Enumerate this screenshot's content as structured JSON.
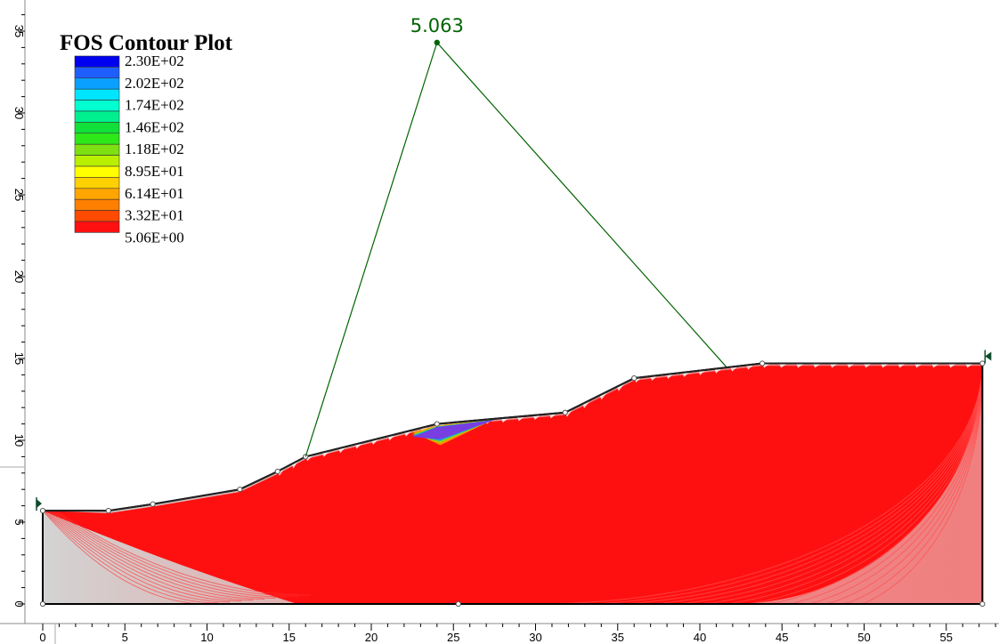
{
  "chart_data": {
    "type": "contour",
    "title": "FOS Contour Plot",
    "x_ticks": [
      "0",
      "5",
      "10",
      "15",
      "20",
      "25",
      "30",
      "35",
      "40",
      "45",
      "50",
      "55"
    ],
    "y_ticks": [
      "0",
      "5",
      "10",
      "15",
      "20",
      "25",
      "30",
      "35"
    ],
    "xlim": [
      -2.5,
      58.7
    ],
    "ylim": [
      -1.5,
      36.5
    ],
    "legend": {
      "placement": "top-left",
      "labels": [
        "2.30E+02",
        "2.02E+02",
        "1.74E+02",
        "1.46E+02",
        "1.18E+02",
        "8.95E+01",
        "6.14E+01",
        "3.32E+01",
        "5.06E+00"
      ],
      "colors": [
        "#0000f0",
        "#1e5eff",
        "#0aa0ff",
        "#00e5ff",
        "#00ffd0",
        "#00f090",
        "#12e03a",
        "#2ee81a",
        "#7ee012",
        "#b8f000",
        "#ffff00",
        "#ffd000",
        "#ffa500",
        "#ff7f00",
        "#ff4a00",
        "#ff1010"
      ]
    },
    "min_fos": {
      "label": "5.063",
      "x": 24.0,
      "y": 34.3
    },
    "slope_profile": [
      [
        0,
        5.7
      ],
      [
        4,
        5.7
      ],
      [
        6.7,
        6.1
      ],
      [
        12,
        7.0
      ],
      [
        14.3,
        8.1
      ],
      [
        16,
        9.0
      ],
      [
        24,
        11.0
      ],
      [
        31.8,
        11.7
      ],
      [
        36,
        13.8
      ],
      [
        43.8,
        14.7
      ],
      [
        57.2,
        14.7
      ]
    ],
    "bottom_y": 0,
    "surface_entry": [
      16,
      9.0
    ],
    "surface_exit": [
      41.6,
      14.5
    ],
    "colors": {
      "slip_surfaces": "#ff1010",
      "left_soil": "#d3d3d3",
      "right_soil": "#f08080",
      "min_fos_line": "#006400"
    }
  }
}
